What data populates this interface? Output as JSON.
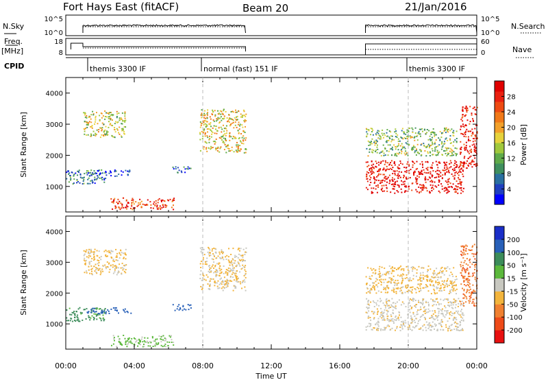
{
  "header": {
    "station": "Fort Hays East (fitACF)",
    "beam": "Beam 20",
    "date": "21/Jan/2016"
  },
  "params": {
    "nsky_label": "N.Sky",
    "nsky_ticks": [
      "10^5",
      "10^0"
    ],
    "nsearch_label": "N.Search",
    "nsearch_ticks": [
      "10^5",
      "10^0"
    ],
    "freq_label_top": "Freq.",
    "freq_label_unit": "[MHz]",
    "freq_ticks": [
      "18",
      "8"
    ],
    "nave_label": "Nave",
    "nave_ticks": [
      "60",
      "0"
    ],
    "cpid_label": "CPID"
  },
  "cpid_segments": [
    {
      "start_h": 1.0,
      "label": "themis 3300 IF"
    },
    {
      "start_h": 8.0,
      "label": "normal (fast) 151 IF"
    },
    {
      "start_h": 20.0,
      "label": "themis 3300 IF"
    }
  ],
  "chart_data": {
    "type": "heatmap",
    "x": {
      "label": "Time UT",
      "range_h": [
        0,
        24
      ],
      "ticks": [
        "00:00",
        "04:00",
        "08:00",
        "12:00",
        "16:00",
        "20:00",
        "00:00"
      ]
    },
    "y": {
      "label": "Slant Range [km]",
      "range_km": [
        180,
        4500
      ],
      "ticks": [
        "1000",
        "2000",
        "3000",
        "4000"
      ]
    },
    "panels": [
      {
        "name": "power",
        "colorbar_label": "Power [dB]",
        "colorbar_ticks": [
          "28",
          "24",
          "20",
          "16",
          "12",
          "8",
          "4"
        ],
        "colorbar_colors": [
          "#0000ff",
          "#1f3fbf",
          "#2a6fa0",
          "#3f8f5f",
          "#5faa4a",
          "#a0c83c",
          "#e6d23c",
          "#f2a02a",
          "#f07818",
          "#ee4a12",
          "#ea2010",
          "#e00000"
        ]
      },
      {
        "name": "velocity",
        "colorbar_label": "Velocity [m s⁻¹]",
        "colorbar_ticks": [
          "200",
          "100",
          "50",
          "15",
          "-15",
          "-50",
          "-100",
          "-200"
        ],
        "colorbar_colors": [
          "#1a2ec8",
          "#2860b8",
          "#3c8c5a",
          "#5cb83c",
          "#c8c8c0",
          "#f2b43c",
          "#f08030",
          "#ee4a18",
          "#e81010"
        ]
      }
    ],
    "scatter_regions": [
      {
        "t0": 0.0,
        "t1": 2.3,
        "r0": 1100,
        "r1": 1550,
        "power": 10,
        "velocity": 65
      },
      {
        "t0": 1.0,
        "t1": 3.5,
        "r0": 2600,
        "r1": 3450,
        "power": 16,
        "velocity": -20
      },
      {
        "t0": 1.2,
        "t1": 3.8,
        "r0": 1350,
        "r1": 1550,
        "power": 7,
        "velocity": 150
      },
      {
        "t0": 2.6,
        "t1": 6.3,
        "r0": 280,
        "r1": 650,
        "power": 24,
        "velocity": 25
      },
      {
        "t0": 6.2,
        "t1": 7.3,
        "r0": 1450,
        "r1": 1650,
        "power": 8,
        "velocity": 160
      },
      {
        "t0": 7.8,
        "t1": 10.5,
        "r0": 2100,
        "r1": 3500,
        "power": 17,
        "velocity": -18
      },
      {
        "t0": 17.5,
        "t1": 23.2,
        "r0": 800,
        "r1": 1850,
        "power": 27,
        "velocity": -5
      },
      {
        "t0": 17.5,
        "t1": 22.8,
        "r0": 2000,
        "r1": 2900,
        "power": 14,
        "velocity": -25
      },
      {
        "t0": 23.0,
        "t1": 24.0,
        "r0": 1600,
        "r1": 3600,
        "power": 26,
        "velocity": -90
      }
    ],
    "data_gap_h": [
      10.5,
      17.5
    ]
  }
}
